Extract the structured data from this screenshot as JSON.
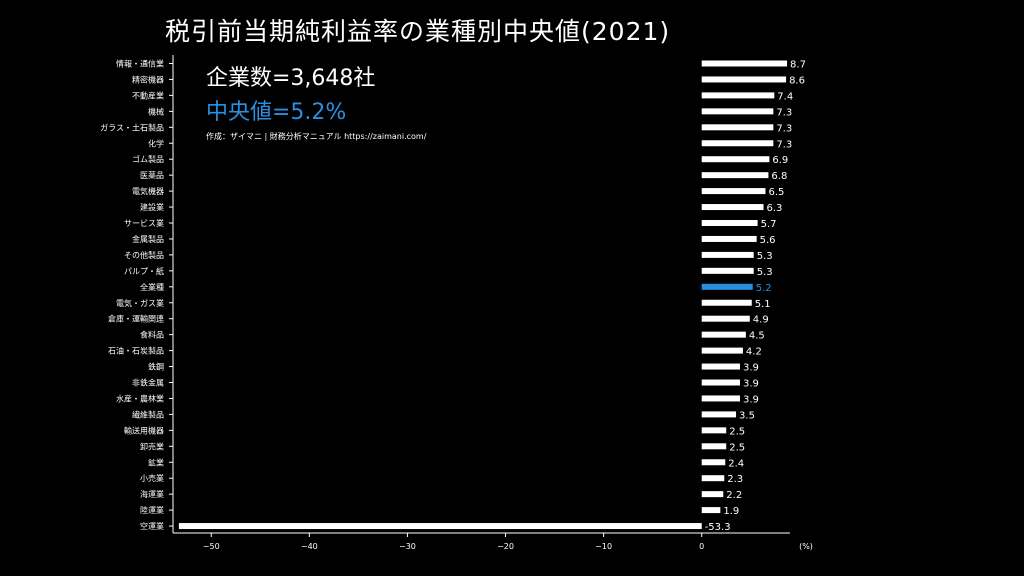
{
  "header": {
    "title": "税引前当期純利益率の業種別中央値(2021)",
    "company_count": "企業数=3,648社",
    "median": "中央値=5.2%",
    "credit": "作成：ザイマニ | 財務分析マニュアル https://zaimani.com/"
  },
  "colors": {
    "bar": "#ffffff",
    "highlight": "#2a8fe0",
    "background": "#000000"
  },
  "chart_data": {
    "type": "bar",
    "orientation": "horizontal",
    "categories": [
      "情報・通信業",
      "精密機器",
      "不動産業",
      "機械",
      "ガラス・土石製品",
      "化学",
      "ゴム製品",
      "医薬品",
      "電気機器",
      "建設業",
      "サービス業",
      "金属製品",
      "その他製品",
      "パルプ・紙",
      "全業種",
      "電気・ガス業",
      "倉庫・運輸関連",
      "食料品",
      "石油・石炭製品",
      "鉄鋼",
      "非鉄金属",
      "水産・農林業",
      "繊維製品",
      "輸送用機器",
      "卸売業",
      "鉱業",
      "小売業",
      "海運業",
      "陸運業",
      "空運業"
    ],
    "values": [
      8.7,
      8.6,
      7.4,
      7.3,
      7.3,
      7.3,
      6.9,
      6.8,
      6.5,
      6.3,
      5.7,
      5.6,
      5.3,
      5.3,
      5.2,
      5.1,
      4.9,
      4.5,
      4.2,
      3.9,
      3.9,
      3.9,
      3.5,
      2.5,
      2.5,
      2.4,
      2.3,
      2.2,
      1.9,
      -53.3
    ],
    "value_labels": [
      "8.7",
      "8.6",
      "7.4",
      "7.3",
      "7.3",
      "7.3",
      "6.9",
      "6.8",
      "6.5",
      "6.3",
      "5.7",
      "5.6",
      "5.3",
      "5.3",
      "5.2",
      "5.1",
      "4.9",
      "4.5",
      "4.2",
      "3.9",
      "3.9",
      "3.9",
      "3.5",
      "2.5",
      "2.5",
      "2.4",
      "2.3",
      "2.2",
      "1.9",
      "-53.3"
    ],
    "highlight_category": "全業種",
    "xticks": [
      -50,
      -40,
      -30,
      -20,
      -10,
      0
    ],
    "xtick_labels": [
      "−50",
      "−40",
      "−30",
      "−20",
      "−10",
      "0"
    ],
    "xlabel": "(%)",
    "xlim": [
      -53.9,
      9.0
    ]
  }
}
